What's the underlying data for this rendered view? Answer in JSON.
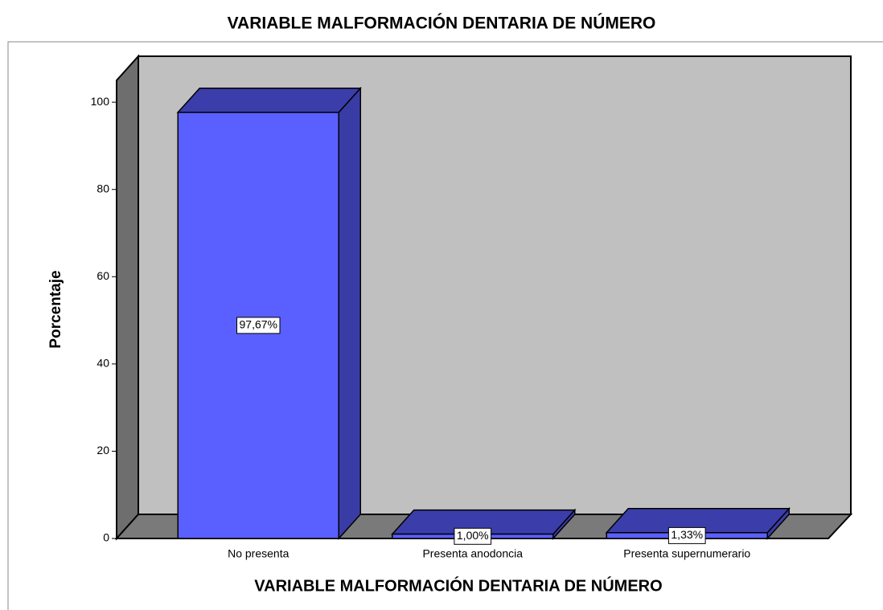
{
  "chart_data": {
    "type": "bar3d",
    "title": "VARIABLE MALFORMACIÓN DENTARIA DE NÚMERO",
    "x_label": "VARIABLE MALFORMACIÓN DENTARIA DE NÚMERO",
    "y_label": "Porcentaje",
    "categories": [
      "No presenta",
      "Presenta anodoncia",
      "Presenta supernumerario"
    ],
    "values": [
      97.67,
      1.0,
      1.33
    ],
    "value_labels": [
      "97,67%",
      "1,00%",
      "1,33%"
    ],
    "color": "#5a5fff",
    "ylim": [
      0,
      105
    ],
    "yticks": [
      0,
      20,
      40,
      60,
      80,
      100
    ]
  }
}
